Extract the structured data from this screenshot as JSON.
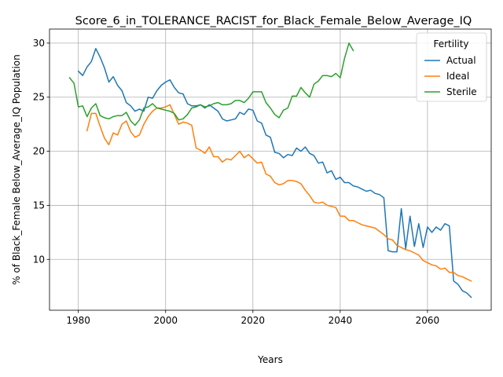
{
  "chart_data": {
    "type": "line",
    "title": "Score_6_in_TOLERANCE_RACIST_for_Black_Female_Below_Average_IQ",
    "xlabel": "Years",
    "ylabel": "% of Black_Female Below_Average_IQ Population",
    "xlim": [
      1973.4,
      2074.6
    ],
    "ylim": [
      5.3,
      31.3
    ],
    "xticks": [
      1980,
      2000,
      2020,
      2040,
      2060
    ],
    "yticks": [
      10,
      15,
      20,
      25,
      30
    ],
    "grid": true,
    "legend": {
      "title": "Fertility",
      "placement": "top-right"
    },
    "series": [
      {
        "name": "Actual",
        "color": "#1f77b4",
        "x": [
          1980,
          1981,
          1982,
          1983,
          1984,
          1985,
          1986,
          1987,
          1988,
          1989,
          1990,
          1991,
          1992,
          1993,
          1994,
          1995,
          1996,
          1997,
          1998,
          1999,
          2000,
          2001,
          2002,
          2003,
          2004,
          2005,
          2006,
          2007,
          2008,
          2009,
          2010,
          2011,
          2012,
          2013,
          2014,
          2015,
          2016,
          2017,
          2018,
          2019,
          2020,
          2021,
          2022,
          2023,
          2024,
          2025,
          2026,
          2027,
          2028,
          2029,
          2030,
          2031,
          2032,
          2033,
          2034,
          2035,
          2036,
          2037,
          2038,
          2039,
          2040,
          2041,
          2042,
          2043,
          2044,
          2045,
          2046,
          2047,
          2048,
          2049,
          2050,
          2051,
          2052,
          2053,
          2054,
          2055,
          2056,
          2057,
          2058,
          2059,
          2060,
          2061,
          2062,
          2063,
          2064,
          2065,
          2066,
          2067,
          2068,
          2069,
          2070
        ],
        "y": [
          27.4,
          27.0,
          27.8,
          28.3,
          29.5,
          28.7,
          27.7,
          26.4,
          26.9,
          26.1,
          25.6,
          24.5,
          24.2,
          23.7,
          23.9,
          23.7,
          25.0,
          24.9,
          25.6,
          26.1,
          26.4,
          26.6,
          25.9,
          25.4,
          25.3,
          24.4,
          24.2,
          24.2,
          24.3,
          24.0,
          24.3,
          24.0,
          23.7,
          23.0,
          22.8,
          22.9,
          23.0,
          23.6,
          23.4,
          23.9,
          23.8,
          22.8,
          22.6,
          21.5,
          21.3,
          19.9,
          19.8,
          19.4,
          19.7,
          19.6,
          20.3,
          20.0,
          20.4,
          19.8,
          19.6,
          18.9,
          19.0,
          18.0,
          18.2,
          17.4,
          17.6,
          17.1,
          17.1,
          16.8,
          16.7,
          16.5,
          16.3,
          16.4,
          16.1,
          16.0,
          15.7,
          10.8,
          10.7,
          10.7,
          14.7,
          11.0,
          14.0,
          11.2,
          13.3,
          11.1,
          13.0,
          12.5,
          13.0,
          12.7,
          13.3,
          13.1,
          8.0,
          7.7,
          7.1,
          6.9,
          6.5
        ]
      },
      {
        "name": "Ideal",
        "color": "#ff7f0e",
        "x": [
          1982,
          1983,
          1984,
          1985,
          1986,
          1987,
          1988,
          1989,
          1990,
          1991,
          1992,
          1993,
          1994,
          1995,
          1996,
          1997,
          1998,
          1999,
          2000,
          2001,
          2002,
          2003,
          2004,
          2005,
          2006,
          2007,
          2008,
          2009,
          2010,
          2011,
          2012,
          2013,
          2014,
          2015,
          2016,
          2017,
          2018,
          2019,
          2020,
          2021,
          2022,
          2023,
          2024,
          2025,
          2026,
          2027,
          2028,
          2029,
          2030,
          2031,
          2032,
          2033,
          2034,
          2035,
          2036,
          2037,
          2038,
          2039,
          2040,
          2041,
          2042,
          2043,
          2044,
          2045,
          2046,
          2047,
          2048,
          2049,
          2050,
          2051,
          2052,
          2053,
          2054,
          2055,
          2056,
          2057,
          2058,
          2059,
          2060,
          2061,
          2062,
          2063,
          2064,
          2065,
          2066,
          2067,
          2068,
          2069,
          2070
        ],
        "y": [
          21.9,
          23.5,
          23.5,
          22.3,
          21.2,
          20.6,
          21.7,
          21.5,
          22.5,
          22.8,
          21.8,
          21.3,
          21.5,
          22.5,
          23.2,
          23.7,
          24.0,
          24.0,
          24.1,
          24.3,
          23.4,
          22.5,
          22.7,
          22.6,
          22.4,
          20.3,
          20.1,
          19.8,
          20.4,
          19.5,
          19.5,
          19.0,
          19.3,
          19.2,
          19.6,
          20.0,
          19.4,
          19.7,
          19.3,
          18.9,
          19.0,
          17.9,
          17.7,
          17.1,
          16.9,
          17.0,
          17.3,
          17.3,
          17.2,
          17.0,
          16.4,
          15.9,
          15.3,
          15.2,
          15.3,
          15.0,
          14.9,
          14.8,
          14.0,
          14.0,
          13.6,
          13.6,
          13.4,
          13.2,
          13.1,
          13.0,
          12.9,
          12.6,
          12.3,
          11.9,
          11.8,
          11.3,
          11.1,
          10.9,
          10.8,
          10.6,
          10.4,
          9.9,
          9.7,
          9.5,
          9.4,
          9.1,
          9.2,
          8.8,
          8.8,
          8.5,
          8.4,
          8.2,
          8.0
        ]
      },
      {
        "name": "Sterile",
        "color": "#2ca02c",
        "x": [
          1978,
          1979,
          1980,
          1981,
          1982,
          1983,
          1984,
          1985,
          1986,
          1987,
          1988,
          1989,
          1990,
          1991,
          1992,
          1993,
          1994,
          1995,
          1996,
          1997,
          1998,
          1999,
          2000,
          2001,
          2002,
          2003,
          2004,
          2005,
          2006,
          2007,
          2008,
          2009,
          2010,
          2011,
          2012,
          2013,
          2014,
          2015,
          2016,
          2017,
          2018,
          2019,
          2020,
          2021,
          2022,
          2023,
          2024,
          2025,
          2026,
          2027,
          2028,
          2029,
          2030,
          2031,
          2032,
          2033,
          2034,
          2035,
          2036,
          2037,
          2038,
          2039,
          2040,
          2041,
          2042,
          2043
        ],
        "y": [
          26.8,
          26.3,
          24.1,
          24.2,
          23.2,
          24.0,
          24.4,
          23.3,
          23.1,
          23.0,
          23.2,
          23.3,
          23.3,
          23.6,
          22.8,
          22.4,
          22.9,
          24.0,
          24.1,
          24.4,
          24.0,
          23.9,
          23.8,
          23.7,
          23.5,
          22.9,
          23.0,
          23.4,
          24.0,
          24.1,
          24.3,
          24.1,
          24.2,
          24.4,
          24.5,
          24.3,
          24.3,
          24.4,
          24.7,
          24.7,
          24.5,
          24.9,
          25.5,
          25.5,
          25.5,
          24.5,
          24.0,
          23.4,
          23.1,
          23.8,
          24.0,
          25.1,
          25.1,
          25.9,
          25.4,
          25.0,
          26.2,
          26.5,
          27.0,
          27.0,
          26.9,
          27.2,
          26.8,
          28.6,
          30.0,
          29.3
        ]
      }
    ]
  }
}
